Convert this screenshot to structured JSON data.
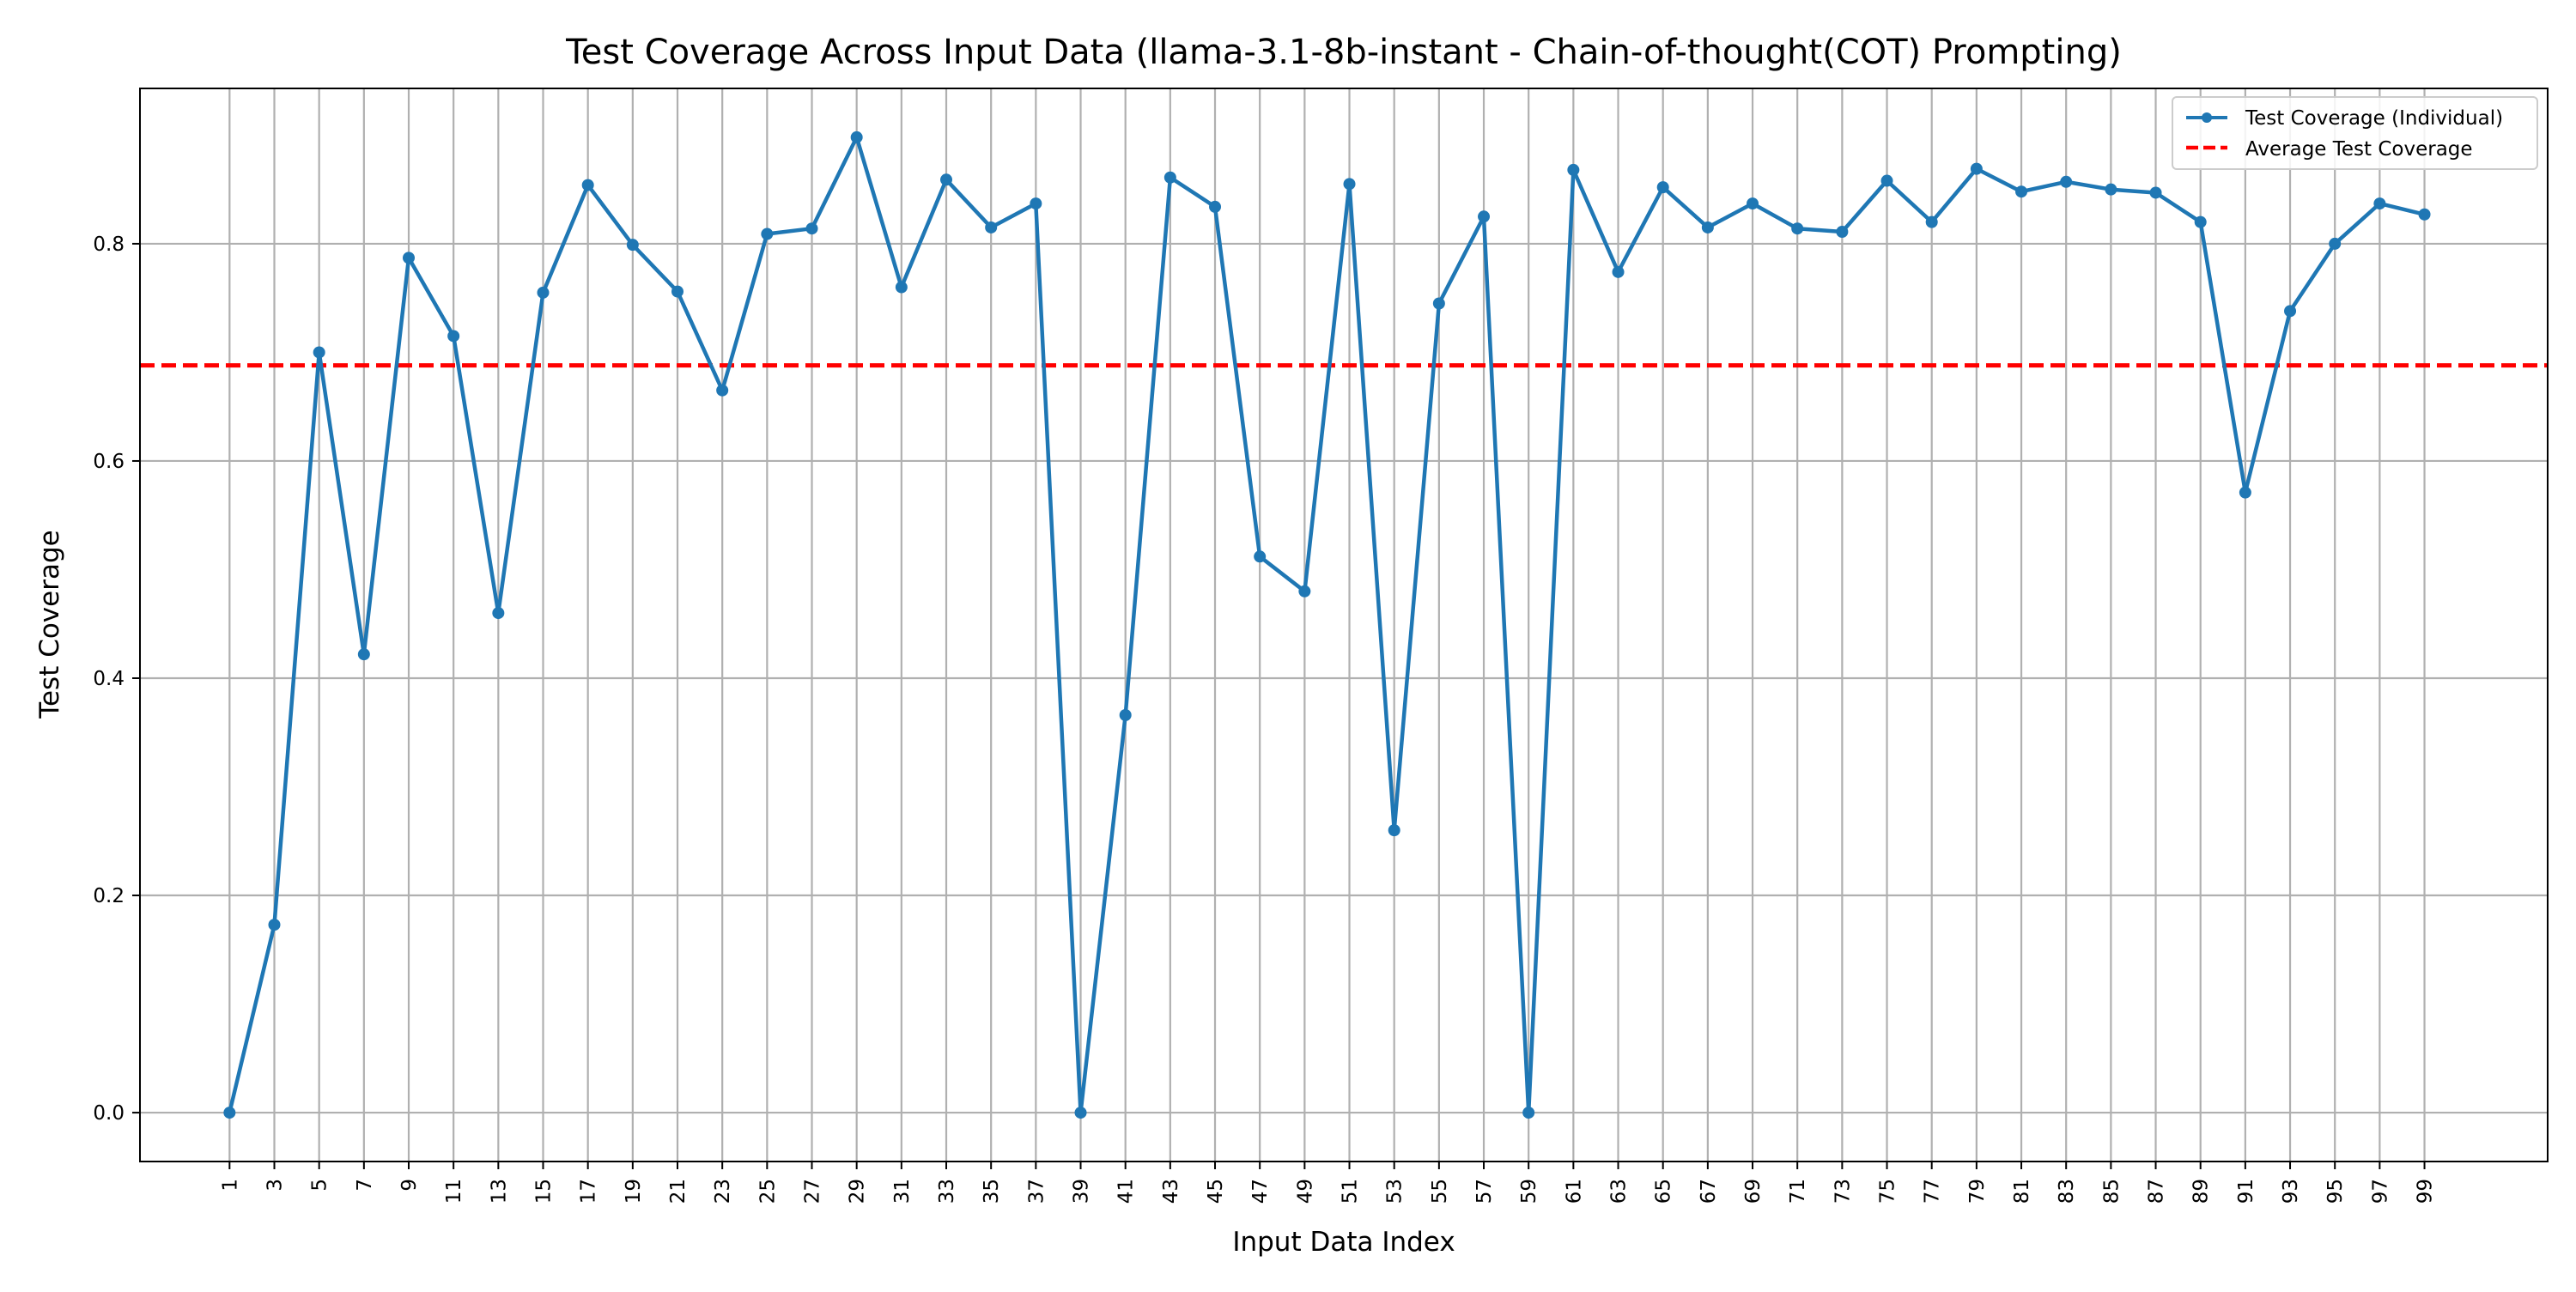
{
  "chart_data": {
    "type": "line",
    "title": "Test Coverage Across Input Data (llama-3.1-8b-instant - Chain-of-thought(COT) Prompting)",
    "xlabel": "Input Data Index",
    "ylabel": "Test Coverage",
    "xlim": [
      -3.0,
      104.5
    ],
    "ylim": [
      -0.045,
      0.943
    ],
    "grid": true,
    "legend_position": "top-right",
    "x": [
      1,
      3,
      5,
      7,
      9,
      11,
      13,
      15,
      17,
      19,
      21,
      23,
      25,
      27,
      29,
      31,
      33,
      35,
      37,
      39,
      41,
      43,
      45,
      47,
      49,
      51,
      53,
      55,
      57,
      59,
      61,
      63,
      65,
      67,
      69,
      71,
      73,
      75,
      77,
      79,
      81,
      83,
      85,
      87,
      89,
      91,
      93,
      95,
      97,
      99
    ],
    "x_tick_labels": [
      "1",
      "3",
      "5",
      "7",
      "9",
      "11",
      "13",
      "15",
      "17",
      "19",
      "21",
      "23",
      "25",
      "27",
      "29",
      "31",
      "33",
      "35",
      "37",
      "39",
      "41",
      "43",
      "45",
      "47",
      "49",
      "51",
      "53",
      "55",
      "57",
      "59",
      "61",
      "63",
      "65",
      "67",
      "69",
      "71",
      "73",
      "75",
      "77",
      "79",
      "81",
      "83",
      "85",
      "87",
      "89",
      "91",
      "93",
      "95",
      "97",
      "99"
    ],
    "y_ticks": [
      0.0,
      0.2,
      0.4,
      0.6,
      0.8
    ],
    "y_tick_labels": [
      "0.0",
      "0.2",
      "0.4",
      "0.6",
      "0.8"
    ],
    "series": [
      {
        "name": "Test Coverage (Individual)",
        "color": "#1f77b4",
        "style": "solid-with-markers",
        "values": [
          0.0,
          0.173,
          0.7,
          0.422,
          0.787,
          0.715,
          0.46,
          0.755,
          0.854,
          0.799,
          0.756,
          0.665,
          0.809,
          0.814,
          0.898,
          0.76,
          0.859,
          0.815,
          0.837,
          0.0,
          0.366,
          0.861,
          0.834,
          0.512,
          0.48,
          0.855,
          0.26,
          0.745,
          0.825,
          0.0,
          0.868,
          0.774,
          0.852,
          0.815,
          0.837,
          0.814,
          0.811,
          0.858,
          0.82,
          0.869,
          0.848,
          0.857,
          0.85,
          0.847,
          0.82,
          0.571,
          0.738,
          0.8,
          0.837,
          0.827
        ]
      },
      {
        "name": "Average Test Coverage",
        "color": "#ff0000",
        "style": "dashed",
        "value": 0.688
      }
    ]
  }
}
